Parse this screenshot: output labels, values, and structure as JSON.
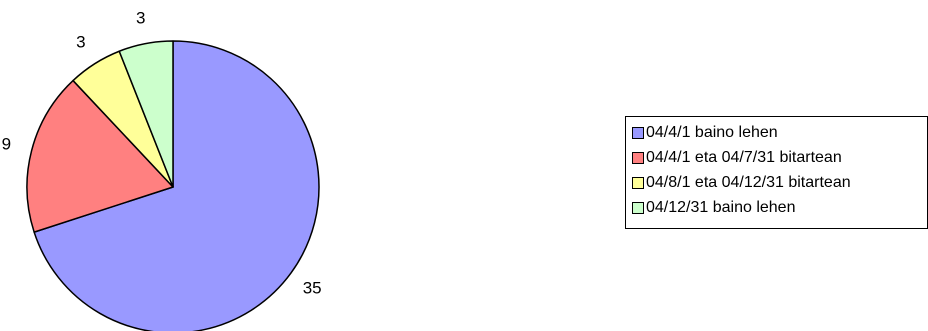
{
  "chart_data": {
    "type": "pie",
    "categories": [
      "04/4/1 baino lehen",
      "04/4/1 eta 04/7/31 bitartean",
      "04/8/1 eta 04/12/31 bitartean",
      "04/12/31 baino lehen"
    ],
    "values": [
      35,
      9,
      3,
      3
    ],
    "colors": [
      "#9999ff",
      "#ff8080",
      "#ffff99",
      "#ccffcc"
    ],
    "data_labels": [
      "35",
      "9",
      "3",
      "3"
    ],
    "legend_position": "right",
    "title": ""
  }
}
